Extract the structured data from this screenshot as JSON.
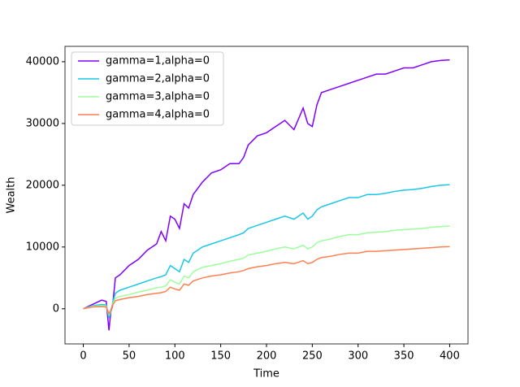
{
  "chart_data": {
    "type": "line",
    "x_label": "Time",
    "y_label": "Wealth",
    "x": [
      0,
      10,
      20,
      25,
      28,
      30,
      32,
      35,
      40,
      50,
      60,
      70,
      80,
      85,
      90,
      95,
      100,
      105,
      110,
      115,
      120,
      130,
      140,
      150,
      160,
      170,
      175,
      180,
      190,
      200,
      210,
      220,
      230,
      240,
      245,
      250,
      255,
      260,
      270,
      280,
      290,
      300,
      310,
      320,
      330,
      340,
      350,
      360,
      370,
      380,
      390,
      400
    ],
    "series": [
      {
        "name": "gamma=1,alpha=0",
        "color": "#8000ff",
        "values": [
          0,
          700,
          1400,
          1200,
          -3500,
          -500,
          500,
          5000,
          5500,
          7000,
          8000,
          9500,
          10500,
          12500,
          11000,
          15000,
          14500,
          13000,
          17000,
          16300,
          18500,
          20500,
          22000,
          22500,
          23500,
          23500,
          24500,
          26500,
          28000,
          28500,
          29500,
          30500,
          29000,
          32500,
          30000,
          29500,
          33000,
          35000,
          35500,
          36000,
          36500,
          37000,
          37500,
          38000,
          38000,
          38500,
          39000,
          39000,
          39500,
          40000,
          40200,
          40300
        ]
      },
      {
        "name": "gamma=2,alpha=0",
        "color": "#1ac7e6",
        "values": [
          0,
          500,
          700,
          600,
          -1500,
          -500,
          1000,
          2500,
          3000,
          3500,
          4000,
          4500,
          5000,
          5200,
          5500,
          7000,
          6500,
          6000,
          8000,
          7500,
          9000,
          10000,
          10500,
          11000,
          11500,
          12000,
          12300,
          13000,
          13500,
          14000,
          14500,
          15000,
          14500,
          15500,
          14500,
          15000,
          16000,
          16500,
          17000,
          17500,
          18000,
          18000,
          18500,
          18500,
          18700,
          19000,
          19200,
          19300,
          19500,
          19800,
          20000,
          20100
        ]
      },
      {
        "name": "gamma=3,alpha=0",
        "color": "#9cff9c",
        "values": [
          0,
          400,
          500,
          450,
          -1000,
          -300,
          800,
          1700,
          2000,
          2300,
          2700,
          3000,
          3400,
          3500,
          3700,
          4700,
          4300,
          4000,
          5300,
          5000,
          6000,
          6700,
          7000,
          7300,
          7700,
          8000,
          8200,
          8700,
          9000,
          9300,
          9700,
          10000,
          9700,
          10300,
          9700,
          10000,
          10700,
          11000,
          11300,
          11700,
          12000,
          12000,
          12300,
          12400,
          12500,
          12700,
          12800,
          12900,
          13000,
          13200,
          13300,
          13400
        ]
      },
      {
        "name": "gamma=4,alpha=0",
        "color": "#ff7f50",
        "values": [
          0,
          300,
          350,
          300,
          -800,
          -200,
          600,
          1300,
          1500,
          1800,
          2000,
          2300,
          2500,
          2600,
          2800,
          3500,
          3200,
          3000,
          4000,
          3800,
          4500,
          5000,
          5300,
          5500,
          5800,
          6000,
          6200,
          6500,
          6800,
          7000,
          7300,
          7500,
          7300,
          7800,
          7300,
          7500,
          8000,
          8300,
          8500,
          8800,
          9000,
          9000,
          9300,
          9300,
          9400,
          9500,
          9600,
          9700,
          9800,
          9900,
          10000,
          10050
        ]
      }
    ],
    "xlim": [
      -20,
      420
    ],
    "ylim": [
      -5690,
      42490
    ],
    "xticks": [
      0,
      50,
      100,
      150,
      200,
      250,
      300,
      350,
      400
    ],
    "yticks": [
      0,
      10000,
      20000,
      30000,
      40000
    ],
    "legend": "upper left"
  }
}
